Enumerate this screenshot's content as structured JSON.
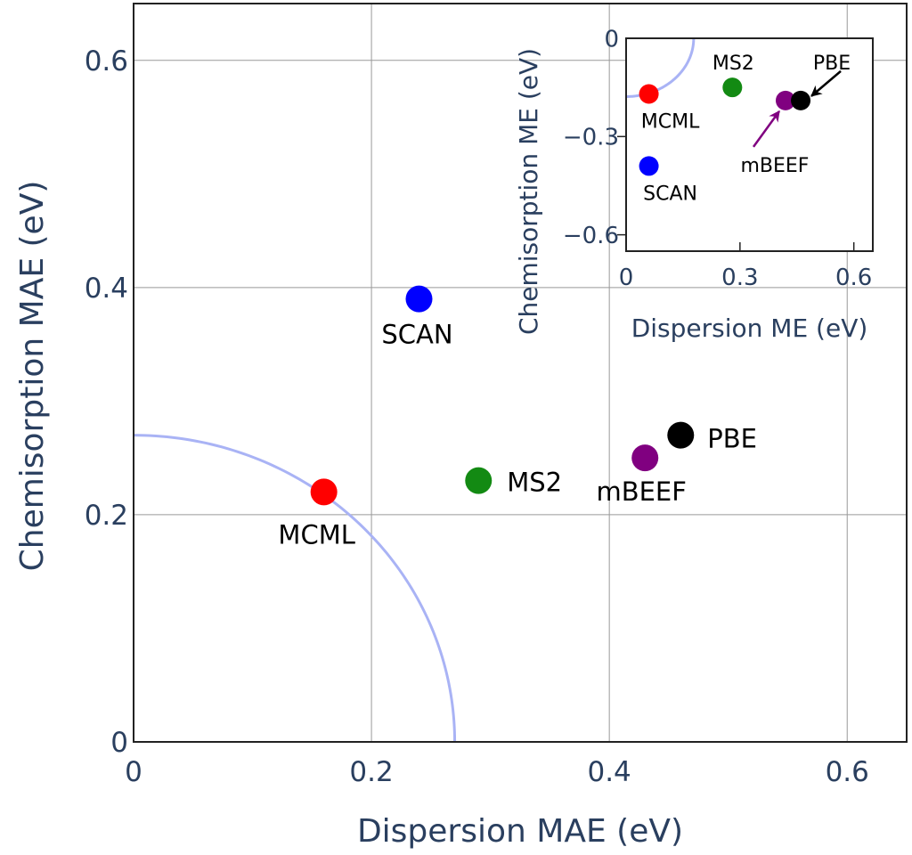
{
  "chart_data": [
    {
      "type": "scatter",
      "xlabel": "Dispersion MAE (eV)",
      "ylabel": "Chemisorption MAE (eV)",
      "xlim": [
        0,
        0.65
      ],
      "ylim": [
        0,
        0.65
      ],
      "xticks": [
        "0",
        "0.2",
        "0.4",
        "0.6"
      ],
      "yticks": [
        "0",
        "0.2",
        "0.4",
        "0.6"
      ],
      "xtick_values": [
        0,
        0.2,
        0.4,
        0.6
      ],
      "ytick_values": [
        0,
        0.2,
        0.4,
        0.6
      ],
      "grid": true,
      "arc_radius": 0.27,
      "arc_color": "#a9b3f5",
      "points": [
        {
          "label": "MCML",
          "x": 0.16,
          "y": 0.22,
          "color": "#ff0000"
        },
        {
          "label": "SCAN",
          "x": 0.24,
          "y": 0.39,
          "color": "#0000ff"
        },
        {
          "label": "MS2",
          "x": 0.29,
          "y": 0.23,
          "color": "#138a13"
        },
        {
          "label": "mBEEF",
          "x": 0.43,
          "y": 0.25,
          "color": "#800080"
        },
        {
          "label": "PBE",
          "x": 0.46,
          "y": 0.27,
          "color": "#000000"
        }
      ]
    },
    {
      "type": "scatter",
      "xlabel": "Dispersion ME (eV)",
      "ylabel": "Chemisorption ME (eV)",
      "xlim": [
        0,
        0.65
      ],
      "ylim": [
        -0.65,
        0
      ],
      "xticks": [
        "0",
        "0.3",
        "0.6"
      ],
      "yticks": [
        "0",
        "−0.3",
        "−0.6"
      ],
      "xtick_values": [
        0,
        0.3,
        0.6
      ],
      "ytick_values": [
        0,
        -0.3,
        -0.6
      ],
      "grid": false,
      "arc_radius": 0.178,
      "arc_color": "#a9b3f5",
      "points": [
        {
          "label": "MCML",
          "x": 0.06,
          "y": -0.17,
          "color": "#ff0000"
        },
        {
          "label": "SCAN",
          "x": 0.06,
          "y": -0.39,
          "color": "#0000ff"
        },
        {
          "label": "MS2",
          "x": 0.28,
          "y": -0.15,
          "color": "#138a13"
        },
        {
          "label": "mBEEF",
          "x": 0.42,
          "y": -0.19,
          "color": "#800080"
        },
        {
          "label": "PBE",
          "x": 0.46,
          "y": -0.19,
          "color": "#000000"
        }
      ]
    }
  ]
}
